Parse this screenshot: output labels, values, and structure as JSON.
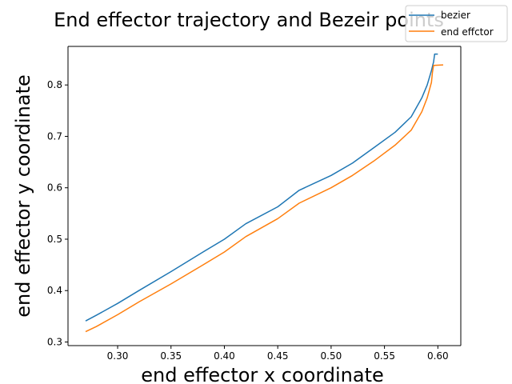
{
  "chart_data": {
    "type": "line",
    "title": "End effector trajectory and Bezeir points",
    "xlabel": "end effector x coordinate",
    "ylabel": "end effector y coordinate",
    "xlim": [
      0.2535,
      0.6215
    ],
    "ylim": [
      0.293,
      0.875
    ],
    "x_ticks": [
      0.3,
      0.35,
      0.4,
      0.45,
      0.5,
      0.55,
      0.6
    ],
    "x_tick_labels": [
      "0.30",
      "0.35",
      "0.40",
      "0.45",
      "0.50",
      "0.55",
      "0.60"
    ],
    "y_ticks": [
      0.3,
      0.4,
      0.5,
      0.6,
      0.7,
      0.8
    ],
    "y_tick_labels": [
      "0.3",
      "0.4",
      "0.5",
      "0.6",
      "0.7",
      "0.8"
    ],
    "grid": false,
    "legend_position": "top-right",
    "series": [
      {
        "name": "bezier",
        "color": "#1f77b4",
        "x": [
          0.27,
          0.28,
          0.3,
          0.32,
          0.35,
          0.38,
          0.4,
          0.42,
          0.45,
          0.47,
          0.5,
          0.52,
          0.54,
          0.56,
          0.575,
          0.585,
          0.59,
          0.594,
          0.596,
          0.597,
          0.6
        ],
        "y": [
          0.341,
          0.352,
          0.375,
          0.4,
          0.437,
          0.475,
          0.5,
          0.53,
          0.563,
          0.595,
          0.624,
          0.648,
          0.678,
          0.708,
          0.738,
          0.775,
          0.8,
          0.828,
          0.845,
          0.86,
          0.86
        ]
      },
      {
        "name": "end effctor",
        "color": "#ff7f0e",
        "x": [
          0.27,
          0.28,
          0.3,
          0.32,
          0.35,
          0.38,
          0.4,
          0.42,
          0.45,
          0.47,
          0.5,
          0.52,
          0.54,
          0.56,
          0.575,
          0.585,
          0.59,
          0.594,
          0.595,
          0.596,
          0.605
        ],
        "y": [
          0.32,
          0.33,
          0.353,
          0.378,
          0.413,
          0.45,
          0.475,
          0.505,
          0.54,
          0.57,
          0.6,
          0.624,
          0.652,
          0.683,
          0.712,
          0.748,
          0.775,
          0.805,
          0.825,
          0.838,
          0.839
        ]
      }
    ]
  }
}
